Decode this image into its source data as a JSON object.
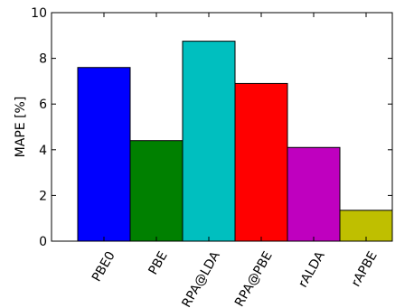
{
  "chart_data": {
    "type": "bar",
    "title": "",
    "xlabel": "",
    "ylabel": "MAPE [%]",
    "ylim": [
      0,
      10
    ],
    "yticks": [
      0,
      2,
      4,
      6,
      8,
      10
    ],
    "categories": [
      "PBE0",
      "PBE",
      "RPA@LDA",
      "RPA@PBE",
      "rALDA",
      "rAPBE"
    ],
    "values": [
      7.6,
      4.4,
      8.75,
      6.9,
      4.1,
      1.35
    ],
    "colors": [
      "#0000ff",
      "#008000",
      "#00bfbf",
      "#ff0000",
      "#bf00bf",
      "#bfbf00"
    ],
    "xtick_rotation_deg": -60,
    "grid": false,
    "legend": "none"
  }
}
